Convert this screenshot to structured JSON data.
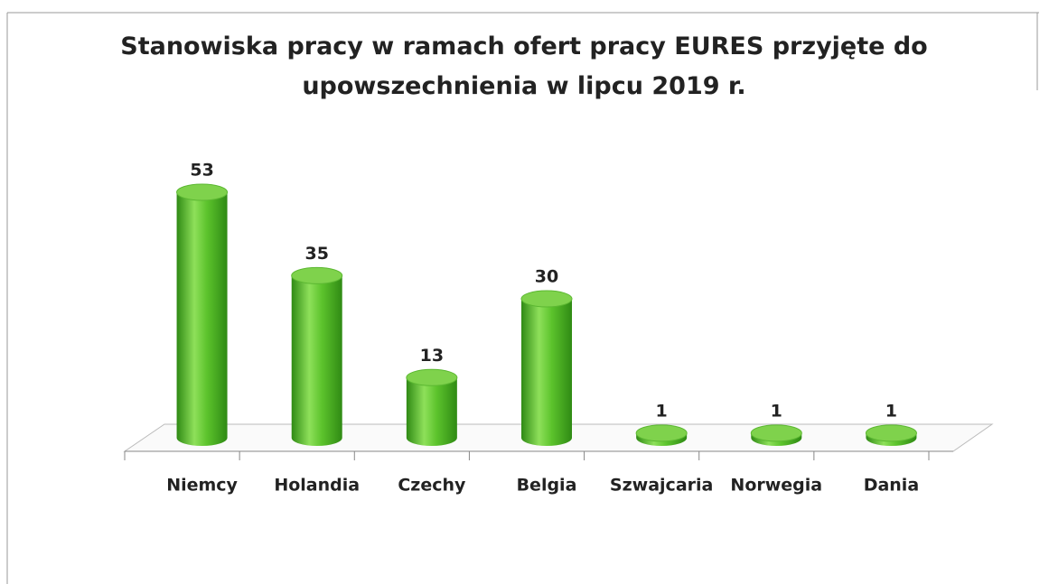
{
  "chart_data": {
    "type": "bar3d",
    "title": "Stanowiska pracy w ramach ofert pracy EURES przyjęte do upowszechnienia w lipcu 2019 r.",
    "categories": [
      "Niemcy",
      "Holandia",
      "Czechy",
      "Belgia",
      "Szwajcaria",
      "Norwegia",
      "Dania"
    ],
    "values": [
      53,
      35,
      13,
      30,
      1,
      1,
      1
    ],
    "color": "#4fb02a"
  }
}
